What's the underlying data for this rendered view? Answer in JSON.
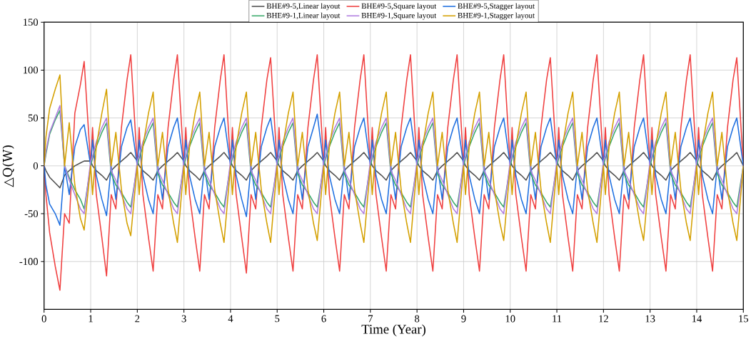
{
  "chart_data": {
    "type": "line",
    "xlabel": "Time (Year)",
    "ylabel": "△Q(W)",
    "xlim": [
      0,
      15
    ],
    "xticks": [
      0,
      1,
      2,
      3,
      4,
      5,
      6,
      7,
      8,
      9,
      10,
      11,
      12,
      13,
      14,
      15
    ],
    "ylim": [
      -150,
      150
    ],
    "yticks": [
      -100,
      -50,
      0,
      50,
      100,
      150
    ],
    "grid": true,
    "legend": "top",
    "marker": "none",
    "line_style": "solid",
    "x": [
      0,
      0.04,
      0.12,
      0.24,
      0.34,
      0.44,
      0.54,
      0.66,
      0.78,
      0.86,
      1,
      1.04,
      1.12,
      1.24,
      1.34,
      1.44,
      1.54,
      1.66,
      1.78,
      1.86,
      2,
      2.04,
      2.12,
      2.24,
      2.34,
      2.44,
      2.54,
      2.66,
      2.78,
      2.86,
      3,
      3.04,
      3.12,
      3.24,
      3.34,
      3.44,
      3.54,
      3.66,
      3.78,
      3.86,
      4,
      4.04,
      4.12,
      4.24,
      4.34,
      4.44,
      4.54,
      4.66,
      4.78,
      4.86,
      5,
      5.04,
      5.12,
      5.24,
      5.34,
      5.44,
      5.54,
      5.66,
      5.78,
      5.86,
      6,
      6.04,
      6.12,
      6.24,
      6.34,
      6.44,
      6.54,
      6.66,
      6.78,
      6.86,
      7,
      7.04,
      7.12,
      7.24,
      7.34,
      7.44,
      7.54,
      7.66,
      7.78,
      7.86,
      8,
      8.04,
      8.12,
      8.24,
      8.34,
      8.44,
      8.54,
      8.66,
      8.78,
      8.86,
      9,
      9.04,
      9.12,
      9.24,
      9.34,
      9.44,
      9.54,
      9.66,
      9.78,
      9.86,
      10,
      10.04,
      10.12,
      10.24,
      10.34,
      10.44,
      10.54,
      10.66,
      10.78,
      10.86,
      11,
      11.04,
      11.12,
      11.24,
      11.34,
      11.44,
      11.54,
      11.66,
      11.78,
      11.86,
      12,
      12.04,
      12.12,
      12.24,
      12.34,
      12.44,
      12.54,
      12.66,
      12.78,
      12.86,
      13,
      13.04,
      13.12,
      13.24,
      13.34,
      13.44,
      13.54,
      13.66,
      13.78,
      13.86,
      14,
      14.04,
      14.12,
      14.24,
      14.34,
      14.44,
      14.54,
      14.66,
      14.78,
      14.86,
      15
    ],
    "series": [
      {
        "name": "BHE#9-5,Linear layout",
        "color": "#505050",
        "values": [
          0,
          -5,
          -12,
          -18,
          -23,
          -10,
          -5,
          0,
          3,
          5,
          5,
          0,
          -5,
          -10,
          -15,
          -5,
          0,
          5,
          10,
          14,
          5,
          0,
          -5,
          -10,
          -15,
          -5,
          0,
          5,
          10,
          14,
          5,
          0,
          -5,
          -10,
          -15,
          -5,
          0,
          5,
          10,
          14,
          5,
          0,
          -5,
          -10,
          -15,
          -5,
          0,
          5,
          10,
          14,
          5,
          0,
          -5,
          -10,
          -15,
          -5,
          0,
          5,
          10,
          14,
          5,
          0,
          -5,
          -10,
          -15,
          -5,
          0,
          5,
          10,
          14,
          5,
          0,
          -5,
          -10,
          -15,
          -5,
          0,
          5,
          10,
          14,
          5,
          0,
          -5,
          -10,
          -15,
          -5,
          0,
          5,
          10,
          14,
          5,
          0,
          -5,
          -10,
          -15,
          -5,
          0,
          5,
          10,
          14,
          5,
          0,
          -5,
          -10,
          -15,
          -5,
          0,
          5,
          10,
          14,
          5,
          0,
          -5,
          -10,
          -15,
          -5,
          0,
          5,
          10,
          14,
          5,
          0,
          -5,
          -10,
          -15,
          -5,
          0,
          5,
          10,
          14,
          5,
          0,
          -5,
          -10,
          -15,
          -5,
          0,
          5,
          10,
          14,
          5,
          0,
          -5,
          -10,
          -15,
          -5,
          0,
          5,
          10,
          14,
          0
        ]
      },
      {
        "name": "BHE#9-5,Square layout",
        "color": "#f04040",
        "values": [
          0,
          -30,
          -70,
          -105,
          -130,
          -50,
          -60,
          55,
          85,
          109,
          0,
          40,
          -30,
          -75,
          -115,
          -30,
          -45,
          40,
          90,
          116,
          0,
          40,
          -30,
          -75,
          -110,
          -30,
          -45,
          40,
          90,
          116,
          0,
          40,
          -30,
          -75,
          -110,
          -30,
          -45,
          40,
          90,
          116,
          0,
          40,
          -30,
          -75,
          -112,
          -30,
          -45,
          40,
          90,
          113,
          0,
          40,
          -30,
          -75,
          -110,
          -30,
          -45,
          40,
          90,
          116,
          0,
          40,
          -30,
          -75,
          -110,
          -30,
          -45,
          40,
          90,
          116,
          0,
          40,
          -30,
          -75,
          -110,
          -30,
          -45,
          40,
          90,
          116,
          0,
          40,
          -30,
          -75,
          -110,
          -30,
          -45,
          40,
          90,
          116,
          0,
          40,
          -30,
          -75,
          -110,
          -30,
          -45,
          40,
          90,
          116,
          0,
          40,
          -30,
          -75,
          -110,
          -30,
          -45,
          40,
          90,
          113,
          0,
          40,
          -30,
          -75,
          -110,
          -30,
          -45,
          40,
          90,
          116,
          0,
          40,
          -30,
          -75,
          -110,
          -30,
          -45,
          40,
          90,
          116,
          0,
          40,
          -30,
          -75,
          -110,
          -30,
          -45,
          40,
          90,
          116,
          0,
          40,
          -30,
          -75,
          -110,
          -30,
          -45,
          40,
          90,
          113,
          0
        ]
      },
      {
        "name": "BHE#9-5,Stagger layout",
        "color": "#1f6fe0",
        "values": [
          0,
          -20,
          -40,
          -50,
          -62,
          0,
          -30,
          20,
          38,
          43,
          0,
          27,
          -10,
          -35,
          -52,
          0,
          -35,
          20,
          40,
          48,
          0,
          27,
          -10,
          -35,
          -50,
          0,
          -35,
          20,
          40,
          50,
          0,
          27,
          -10,
          -35,
          -50,
          0,
          -35,
          20,
          40,
          50,
          0,
          27,
          -10,
          -35,
          -53,
          0,
          -35,
          20,
          40,
          50,
          0,
          27,
          -10,
          -35,
          -50,
          0,
          -35,
          20,
          40,
          54,
          0,
          27,
          -10,
          -35,
          -50,
          0,
          -35,
          20,
          40,
          50,
          0,
          27,
          -10,
          -35,
          -50,
          0,
          -35,
          20,
          40,
          50,
          0,
          27,
          -10,
          -35,
          -50,
          0,
          -35,
          20,
          40,
          50,
          0,
          27,
          -10,
          -35,
          -50,
          0,
          -35,
          20,
          40,
          50,
          0,
          27,
          -10,
          -35,
          -50,
          0,
          -35,
          20,
          40,
          50,
          0,
          27,
          -10,
          -35,
          -50,
          0,
          -35,
          20,
          40,
          50,
          0,
          27,
          -10,
          -35,
          -50,
          0,
          -35,
          20,
          40,
          50,
          0,
          27,
          -10,
          -35,
          -50,
          0,
          -35,
          20,
          40,
          50,
          0,
          27,
          -10,
          -35,
          -50,
          0,
          -35,
          20,
          40,
          50,
          0
        ]
      },
      {
        "name": "BHE#9-1,Linear layout",
        "color": "#3aaa6a",
        "values": [
          0,
          12,
          33,
          48,
          58,
          0,
          -12,
          -25,
          -35,
          -45,
          0,
          8,
          20,
          35,
          45,
          -8,
          -20,
          -28,
          -38,
          -43,
          0,
          8,
          20,
          35,
          45,
          -8,
          -20,
          -28,
          -38,
          -43,
          0,
          8,
          20,
          35,
          45,
          -8,
          -20,
          -28,
          -38,
          -43,
          0,
          8,
          20,
          35,
          45,
          -8,
          -20,
          -28,
          -38,
          -43,
          0,
          8,
          20,
          35,
          45,
          -8,
          -20,
          -28,
          -38,
          -43,
          0,
          8,
          20,
          35,
          45,
          -8,
          -20,
          -28,
          -38,
          -43,
          0,
          8,
          20,
          35,
          45,
          -8,
          -20,
          -28,
          -38,
          -43,
          0,
          8,
          20,
          35,
          45,
          -8,
          -20,
          -28,
          -38,
          -43,
          0,
          8,
          20,
          35,
          45,
          -8,
          -20,
          -28,
          -38,
          -43,
          0,
          8,
          20,
          35,
          45,
          -8,
          -20,
          -28,
          -38,
          -43,
          0,
          8,
          20,
          35,
          45,
          -8,
          -20,
          -28,
          -38,
          -43,
          0,
          8,
          20,
          35,
          45,
          -8,
          -20,
          -28,
          -38,
          -43,
          0,
          8,
          20,
          35,
          45,
          -8,
          -20,
          -28,
          -38,
          -43,
          0,
          8,
          20,
          35,
          45,
          -8,
          -20,
          -28,
          -38,
          -43,
          0
        ]
      },
      {
        "name": "BHE#9-1,Square layout",
        "color": "#b07ee0",
        "values": [
          0,
          15,
          35,
          50,
          63,
          0,
          -15,
          -30,
          -45,
          -50,
          5,
          10,
          25,
          40,
          50,
          -5,
          -15,
          -30,
          -45,
          -50,
          5,
          10,
          25,
          40,
          50,
          -5,
          -15,
          -30,
          -45,
          -50,
          5,
          10,
          25,
          40,
          50,
          -5,
          -15,
          -30,
          -45,
          -50,
          5,
          10,
          25,
          40,
          50,
          -5,
          -15,
          -30,
          -45,
          -50,
          5,
          10,
          25,
          40,
          50,
          -5,
          -15,
          -30,
          -45,
          -50,
          5,
          10,
          25,
          40,
          50,
          -5,
          -15,
          -30,
          -45,
          -50,
          5,
          10,
          25,
          40,
          50,
          -5,
          -15,
          -30,
          -45,
          -50,
          5,
          10,
          25,
          40,
          50,
          -5,
          -15,
          -30,
          -45,
          -50,
          5,
          10,
          25,
          40,
          50,
          -5,
          -15,
          -30,
          -45,
          -50,
          5,
          10,
          25,
          40,
          50,
          -5,
          -15,
          -30,
          -45,
          -50,
          5,
          10,
          25,
          40,
          50,
          -5,
          -15,
          -30,
          -45,
          -50,
          5,
          10,
          25,
          40,
          50,
          -5,
          -15,
          -30,
          -45,
          -50,
          5,
          10,
          25,
          40,
          50,
          -5,
          -15,
          -30,
          -45,
          -50,
          5,
          10,
          25,
          40,
          50,
          -5,
          -15,
          -30,
          -45,
          -50,
          0
        ]
      },
      {
        "name": "BHE#9-1,Stagger layout",
        "color": "#d4a000",
        "values": [
          0,
          30,
          60,
          80,
          95,
          0,
          45,
          -20,
          -55,
          -67,
          0,
          -30,
          20,
          55,
          80,
          0,
          35,
          -25,
          -60,
          -73,
          0,
          -30,
          20,
          55,
          77,
          0,
          35,
          -25,
          -60,
          -80,
          0,
          -30,
          20,
          55,
          77,
          0,
          35,
          -25,
          -60,
          -80,
          0,
          -30,
          20,
          55,
          77,
          0,
          35,
          -25,
          -60,
          -80,
          0,
          -30,
          20,
          55,
          77,
          0,
          35,
          -25,
          -60,
          -78,
          0,
          -30,
          20,
          55,
          77,
          0,
          35,
          -25,
          -60,
          -80,
          0,
          -30,
          20,
          55,
          77,
          0,
          35,
          -25,
          -60,
          -80,
          0,
          -30,
          20,
          55,
          77,
          0,
          35,
          -25,
          -60,
          -80,
          0,
          -30,
          20,
          55,
          77,
          0,
          35,
          -25,
          -60,
          -78,
          0,
          -30,
          20,
          55,
          77,
          0,
          35,
          -25,
          -60,
          -80,
          0,
          -30,
          20,
          55,
          77,
          0,
          35,
          -25,
          -60,
          -80,
          0,
          -30,
          20,
          55,
          77,
          0,
          35,
          -25,
          -60,
          -78,
          0,
          -30,
          20,
          55,
          77,
          0,
          35,
          -25,
          -60,
          -78,
          0,
          -30,
          20,
          55,
          77,
          0,
          35,
          -25,
          -60,
          -78,
          0
        ]
      }
    ]
  }
}
